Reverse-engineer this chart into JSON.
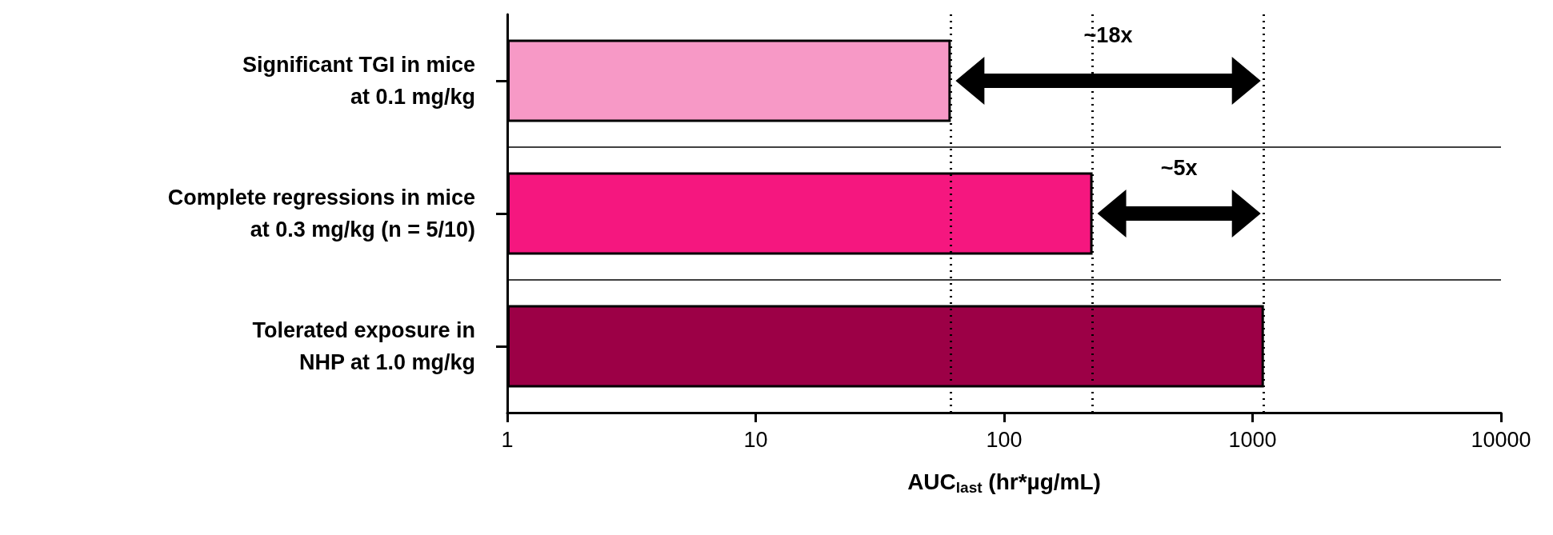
{
  "chart_data": {
    "type": "bar",
    "orientation": "horizontal",
    "xlabel": "AUC$_{last}$ (hr*µg/mL)",
    "categories": [
      "Significant TGI in mice\nat 0.1 mg/kg",
      "Complete regressions in mice\nat 0.3 mg/kg (n = 5/10)",
      "Tolerated exposure in\nNHP at 1.0 mg/kg"
    ],
    "values": [
      61,
      227,
      1111
    ],
    "colors": [
      "#f799c6",
      "#f5177f",
      "#9c0046"
    ],
    "log": "x",
    "xlim": [
      1,
      10000
    ],
    "xticks": [
      1,
      10,
      100,
      1000,
      10000
    ],
    "grid": "y",
    "ref_lines": [
      {
        "axis": "x",
        "value": 61,
        "color": "#000000",
        "line_style": "dotted"
      },
      {
        "axis": "x",
        "value": 227,
        "color": "#000000",
        "line_style": "dotted"
      },
      {
        "axis": "x",
        "value": 1111,
        "color": "#000000",
        "line_style": "dotted"
      }
    ],
    "annotations": [
      "~18x",
      "~5x"
    ]
  }
}
